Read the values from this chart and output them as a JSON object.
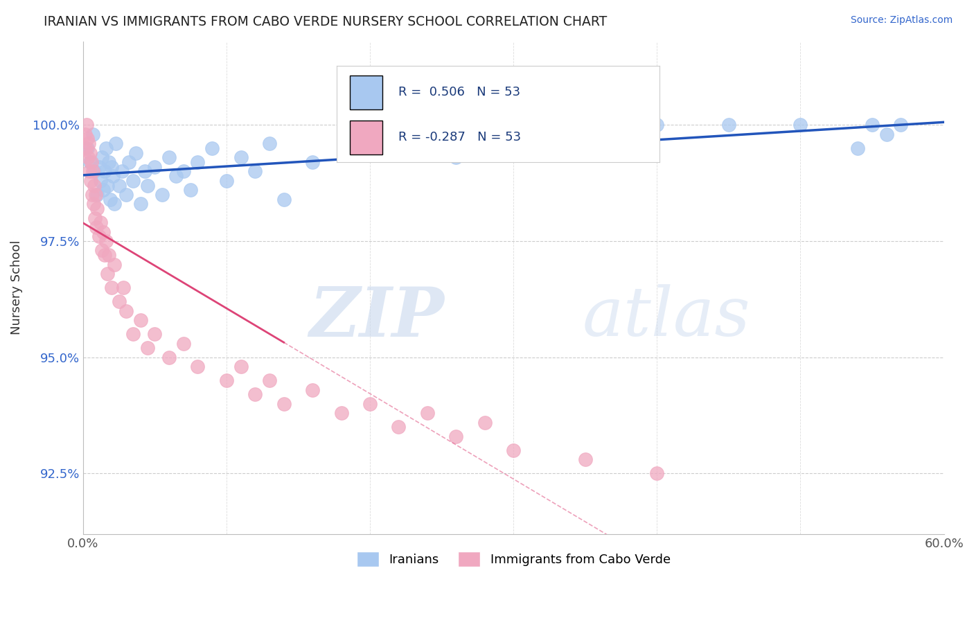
{
  "title": "IRANIAN VS IMMIGRANTS FROM CABO VERDE NURSERY SCHOOL CORRELATION CHART",
  "source_text": "Source: ZipAtlas.com",
  "ylabel": "Nursery School",
  "xlim": [
    0.0,
    60.0
  ],
  "ylim": [
    91.2,
    101.8
  ],
  "yticks": [
    92.5,
    95.0,
    97.5,
    100.0
  ],
  "xticks": [
    0.0,
    10.0,
    20.0,
    30.0,
    40.0,
    50.0,
    60.0
  ],
  "ytick_labels": [
    "92.5%",
    "95.0%",
    "97.5%",
    "100.0%"
  ],
  "blue_R": 0.506,
  "blue_N": 53,
  "pink_R": -0.287,
  "pink_N": 53,
  "blue_color": "#A8C8F0",
  "pink_color": "#F0A8C0",
  "blue_line_color": "#2255BB",
  "pink_line_color": "#DD4477",
  "legend_label_blue": "Iranians",
  "legend_label_pink": "Immigrants from Cabo Verde",
  "watermark_zip": "ZIP",
  "watermark_atlas": "atlas",
  "background_color": "#FFFFFF",
  "blue_scatter_x": [
    0.3,
    0.5,
    0.7,
    0.8,
    1.0,
    1.1,
    1.2,
    1.3,
    1.4,
    1.5,
    1.6,
    1.7,
    1.8,
    1.9,
    2.0,
    2.1,
    2.2,
    2.3,
    2.5,
    2.7,
    3.0,
    3.2,
    3.5,
    3.7,
    4.0,
    4.3,
    4.5,
    5.0,
    5.5,
    6.0,
    6.5,
    7.0,
    7.5,
    8.0,
    9.0,
    10.0,
    11.0,
    12.0,
    13.0,
    14.0,
    16.0,
    19.0,
    22.0,
    26.0,
    30.0,
    35.0,
    40.0,
    45.0,
    50.0,
    54.0,
    55.0,
    56.0,
    57.0
  ],
  "blue_scatter_y": [
    99.5,
    99.2,
    99.8,
    99.0,
    98.5,
    99.1,
    98.8,
    99.3,
    98.6,
    99.0,
    99.5,
    98.7,
    99.2,
    98.4,
    99.1,
    98.9,
    98.3,
    99.6,
    98.7,
    99.0,
    98.5,
    99.2,
    98.8,
    99.4,
    98.3,
    99.0,
    98.7,
    99.1,
    98.5,
    99.3,
    98.9,
    99.0,
    98.6,
    99.2,
    99.5,
    98.8,
    99.3,
    99.0,
    99.6,
    98.4,
    99.2,
    99.5,
    99.7,
    99.3,
    99.5,
    99.8,
    100.0,
    100.0,
    100.0,
    99.5,
    100.0,
    99.8,
    100.0
  ],
  "pink_scatter_x": [
    0.15,
    0.2,
    0.25,
    0.3,
    0.35,
    0.4,
    0.45,
    0.5,
    0.55,
    0.6,
    0.65,
    0.7,
    0.75,
    0.8,
    0.85,
    0.9,
    0.95,
    1.0,
    1.1,
    1.2,
    1.3,
    1.4,
    1.5,
    1.6,
    1.7,
    1.8,
    2.0,
    2.2,
    2.5,
    2.8,
    3.0,
    3.5,
    4.0,
    4.5,
    5.0,
    6.0,
    7.0,
    8.0,
    10.0,
    11.0,
    12.0,
    13.0,
    14.0,
    16.0,
    18.0,
    20.0,
    22.0,
    24.0,
    26.0,
    28.0,
    30.0,
    35.0,
    40.0
  ],
  "pink_scatter_y": [
    99.8,
    99.5,
    100.0,
    99.7,
    99.3,
    99.6,
    99.0,
    99.4,
    98.8,
    99.2,
    98.5,
    99.0,
    98.3,
    98.7,
    98.0,
    98.5,
    97.8,
    98.2,
    97.6,
    97.9,
    97.3,
    97.7,
    97.2,
    97.5,
    96.8,
    97.2,
    96.5,
    97.0,
    96.2,
    96.5,
    96.0,
    95.5,
    95.8,
    95.2,
    95.5,
    95.0,
    95.3,
    94.8,
    94.5,
    94.8,
    94.2,
    94.5,
    94.0,
    94.3,
    93.8,
    94.0,
    93.5,
    93.8,
    93.3,
    93.6,
    93.0,
    92.8,
    92.5
  ],
  "pink_solid_xmax": 14.0,
  "pink_dashed_xmax": 60.0
}
